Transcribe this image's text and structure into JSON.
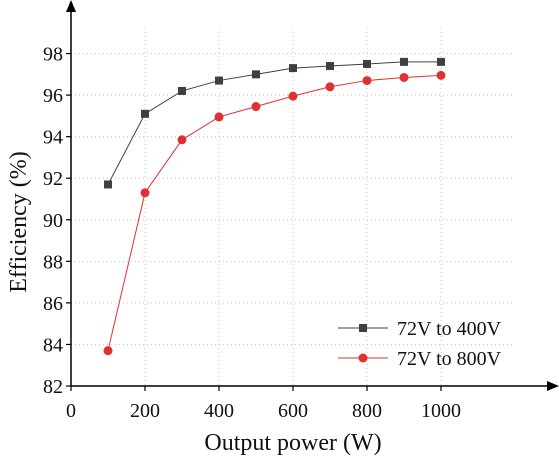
{
  "chart_data": {
    "type": "line",
    "title": "",
    "xlabel": "Output power (W)",
    "ylabel": "Efficiency (%)",
    "xlim": [
      0,
      1200
    ],
    "ylim": [
      82,
      100
    ],
    "xticks": [
      0,
      200,
      400,
      600,
      800,
      1000
    ],
    "yticks": [
      82,
      84,
      86,
      88,
      90,
      92,
      94,
      96,
      98
    ],
    "grid": true,
    "legend_position": "bottom-right",
    "series": [
      {
        "name": "72V to 400V",
        "color": "#404040",
        "marker": "square",
        "x": [
          100,
          200,
          300,
          400,
          500,
          600,
          700,
          800,
          900,
          1000
        ],
        "y": [
          91.7,
          95.1,
          96.2,
          96.7,
          97.0,
          97.3,
          97.4,
          97.5,
          97.6,
          97.6
        ]
      },
      {
        "name": "72V to 800V",
        "color": "#e03030",
        "marker": "circle",
        "x": [
          100,
          200,
          300,
          400,
          500,
          600,
          700,
          800,
          900,
          1000
        ],
        "y": [
          83.7,
          91.3,
          93.85,
          94.95,
          95.45,
          95.95,
          96.4,
          96.7,
          96.85,
          96.95
        ]
      }
    ]
  }
}
